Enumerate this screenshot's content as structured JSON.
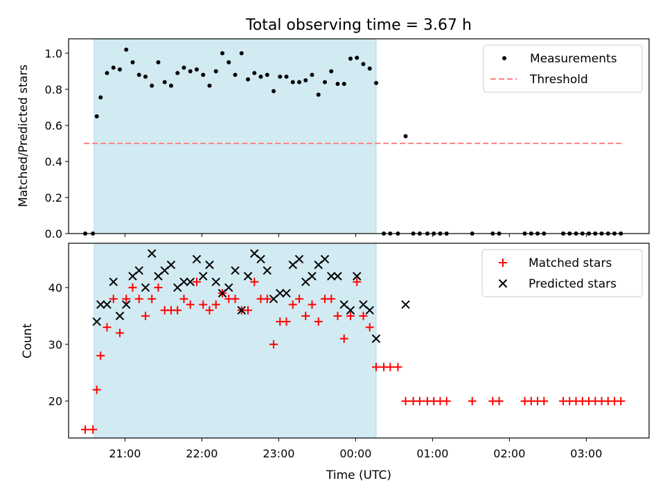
{
  "figure": {
    "title": "Total observing time = 3.67 h"
  },
  "chart_data": [
    {
      "type": "scatter",
      "panel": "top",
      "ylabel": "Matched/Predicted stars",
      "xlim": [
        "20:16",
        "03:49"
      ],
      "ylim": [
        0,
        1.08
      ],
      "yticks": [
        0.0,
        0.2,
        0.4,
        0.6,
        0.8,
        1.0
      ],
      "ytick_labels": [
        "0.0",
        "0.2",
        "0.4",
        "0.6",
        "0.8",
        "1.0"
      ],
      "shaded_region": [
        "20:36",
        "00:16"
      ],
      "shade_color": "#add8e6",
      "legend_placement": "upper right",
      "series": [
        {
          "name": "Measurements",
          "color": "#000000",
          "marker": "dot",
          "x": [
            "20:29",
            "20:35",
            "20:38",
            "20:41",
            "20:46",
            "20:51",
            "20:56",
            "21:01",
            "21:06",
            "21:11",
            "21:16",
            "21:21",
            "21:26",
            "21:31",
            "21:36",
            "21:41",
            "21:46",
            "21:51",
            "21:56",
            "22:01",
            "22:06",
            "22:11",
            "22:16",
            "22:21",
            "22:26",
            "22:31",
            "22:36",
            "22:41",
            "22:46",
            "22:51",
            "22:56",
            "23:01",
            "23:06",
            "23:11",
            "23:16",
            "23:21",
            "23:26",
            "23:31",
            "23:36",
            "23:41",
            "23:46",
            "23:51",
            "23:56",
            "00:01",
            "00:06",
            "00:11",
            "00:16",
            "00:22",
            "00:27",
            "00:33",
            "00:39",
            "00:45",
            "00:50",
            "00:56",
            "01:01",
            "01:06",
            "01:11",
            "01:31",
            "01:47",
            "01:52",
            "02:12",
            "02:17",
            "02:22",
            "02:27",
            "02:42",
            "02:47",
            "02:52",
            "02:57",
            "03:02",
            "03:07",
            "03:12",
            "03:17",
            "03:22",
            "03:27"
          ],
          "y": [
            0.0,
            0.0,
            0.65,
            0.755,
            0.89,
            0.92,
            0.91,
            1.02,
            0.95,
            0.88,
            0.87,
            0.82,
            0.95,
            0.84,
            0.82,
            0.89,
            0.92,
            0.9,
            0.91,
            0.88,
            0.82,
            0.9,
            1.0,
            0.95,
            0.88,
            1.0,
            0.855,
            0.89,
            0.87,
            0.88,
            0.79,
            0.87,
            0.87,
            0.84,
            0.84,
            0.85,
            0.88,
            0.77,
            0.84,
            0.9,
            0.83,
            0.83,
            0.97,
            0.975,
            0.94,
            0.915,
            0.835,
            0.0,
            0.0,
            0.0,
            0.54,
            0.0,
            0.0,
            0.0,
            0.0,
            0.0,
            0.0,
            0.0,
            0.0,
            0.0,
            0.0,
            0.0,
            0.0,
            0.0,
            0.0,
            0.0,
            0.0,
            0.0,
            0.0,
            0.0,
            0.0,
            0.0,
            0.0,
            0.0
          ]
        },
        {
          "name": "Threshold",
          "color": "#ff8080",
          "style": "dashed",
          "x": [
            "20:28",
            "03:28"
          ],
          "y": [
            0.5,
            0.5
          ]
        }
      ]
    },
    {
      "type": "scatter",
      "panel": "bottom",
      "xlabel": "Time (UTC)",
      "ylabel": "Count",
      "xlim": [
        "20:16",
        "03:49"
      ],
      "ylim": [
        13.5,
        47.8
      ],
      "xticks": [
        "21:00",
        "22:00",
        "23:00",
        "00:00",
        "01:00",
        "02:00",
        "03:00"
      ],
      "yticks": [
        20,
        30,
        40
      ],
      "ytick_labels": [
        "20",
        "30",
        "40"
      ],
      "shaded_region": [
        "20:36",
        "00:16"
      ],
      "shade_color": "#add8e6",
      "legend_placement": "upper right",
      "series": [
        {
          "name": "Matched stars",
          "color": "#ff0000",
          "marker": "plus",
          "x": [
            "20:29",
            "20:35",
            "20:38",
            "20:41",
            "20:46",
            "20:51",
            "20:56",
            "21:01",
            "21:06",
            "21:11",
            "21:16",
            "21:21",
            "21:26",
            "21:31",
            "21:36",
            "21:41",
            "21:46",
            "21:51",
            "21:56",
            "22:01",
            "22:06",
            "22:11",
            "22:16",
            "22:21",
            "22:26",
            "22:31",
            "22:36",
            "22:41",
            "22:46",
            "22:51",
            "22:56",
            "23:01",
            "23:06",
            "23:11",
            "23:16",
            "23:21",
            "23:26",
            "23:31",
            "23:36",
            "23:41",
            "23:46",
            "23:51",
            "23:56",
            "00:01",
            "00:06",
            "00:11",
            "00:16",
            "00:22",
            "00:27",
            "00:33",
            "00:39",
            "00:45",
            "00:50",
            "00:56",
            "01:01",
            "01:06",
            "01:11",
            "01:31",
            "01:47",
            "01:52",
            "02:12",
            "02:17",
            "02:22",
            "02:27",
            "02:42",
            "02:47",
            "02:52",
            "02:57",
            "03:02",
            "03:07",
            "03:12",
            "03:17",
            "03:22",
            "03:27"
          ],
          "y": [
            15,
            15,
            22,
            28,
            33,
            38,
            32,
            38,
            40,
            38,
            35,
            38,
            40,
            36,
            36,
            36,
            38,
            37,
            41,
            37,
            36,
            37,
            39,
            38,
            38,
            36,
            36,
            41,
            38,
            38,
            30,
            34,
            34,
            37,
            38,
            35,
            37,
            34,
            38,
            38,
            35,
            31,
            35,
            41,
            35,
            33,
            26,
            26,
            26,
            26,
            20,
            20,
            20,
            20,
            20,
            20,
            20,
            20,
            20,
            20,
            20,
            20,
            20,
            20,
            20,
            20,
            20,
            20,
            20,
            20,
            20,
            20,
            20,
            20
          ]
        },
        {
          "name": "Predicted stars",
          "color": "#000000",
          "marker": "x",
          "x": [
            "20:38",
            "20:41",
            "20:46",
            "20:51",
            "20:56",
            "21:01",
            "21:06",
            "21:11",
            "21:16",
            "21:21",
            "21:26",
            "21:31",
            "21:36",
            "21:41",
            "21:46",
            "21:51",
            "21:56",
            "22:01",
            "22:06",
            "22:11",
            "22:16",
            "22:21",
            "22:26",
            "22:31",
            "22:36",
            "22:41",
            "22:46",
            "22:51",
            "22:56",
            "23:01",
            "23:06",
            "23:11",
            "23:16",
            "23:21",
            "23:26",
            "23:31",
            "23:36",
            "23:41",
            "23:46",
            "23:51",
            "23:56",
            "00:01",
            "00:06",
            "00:11",
            "00:16",
            "00:39"
          ],
          "y": [
            34,
            37,
            37,
            41,
            35,
            37,
            42,
            43,
            40,
            46,
            42,
            43,
            44,
            40,
            41,
            41,
            45,
            42,
            44,
            41,
            39,
            40,
            43,
            36,
            42,
            46,
            45,
            43,
            38,
            39,
            39,
            44,
            45,
            41,
            42,
            44,
            45,
            42,
            42,
            37,
            36,
            42,
            37,
            36,
            31,
            37
          ]
        }
      ]
    }
  ]
}
